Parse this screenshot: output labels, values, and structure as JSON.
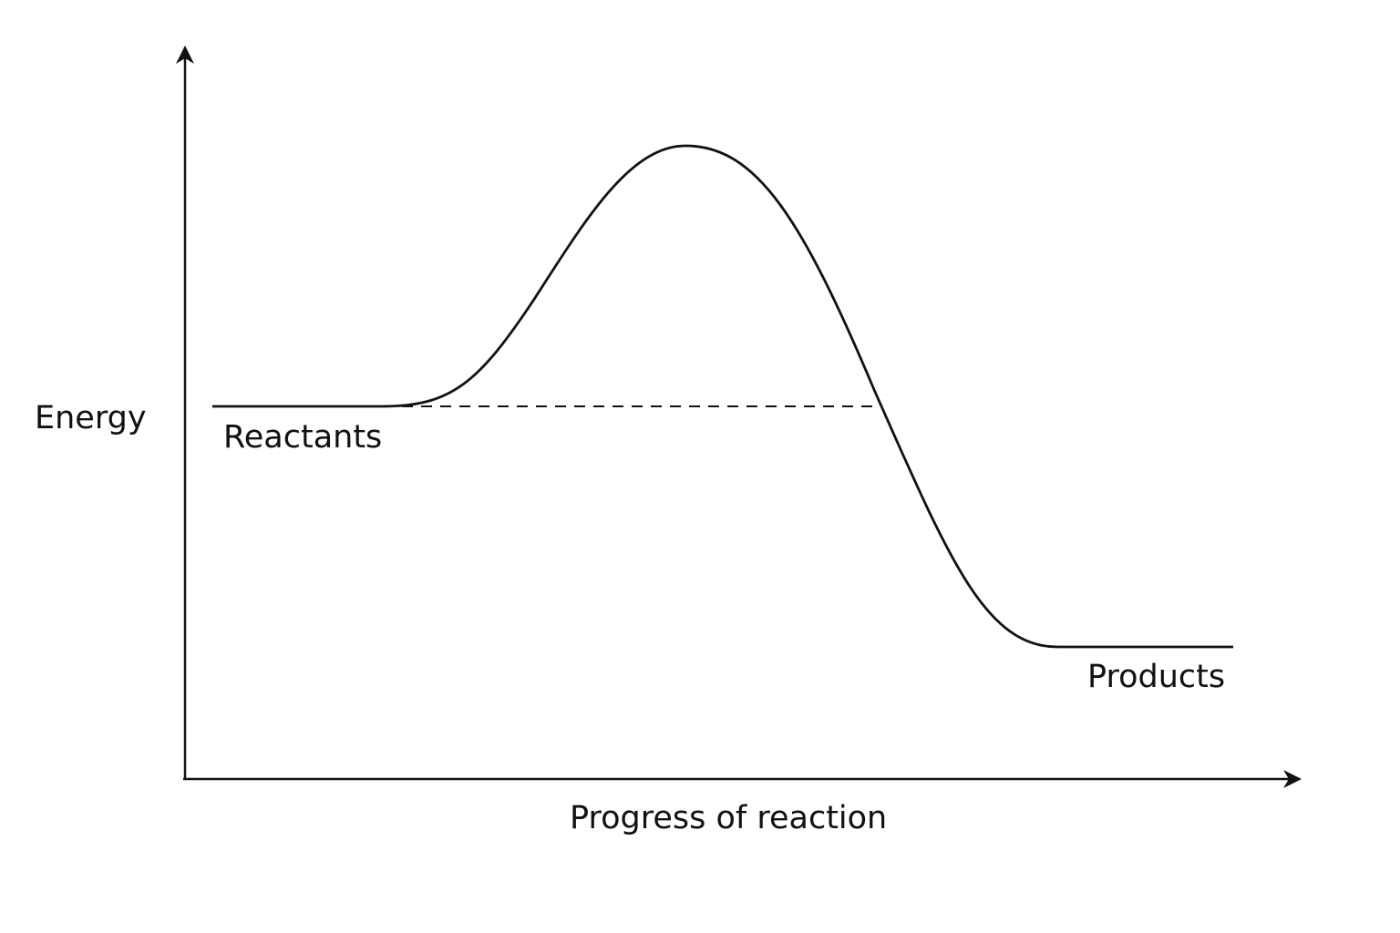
{
  "diagram": {
    "y_axis_label": "Energy",
    "x_axis_label": "Progress of reaction",
    "reactants_label": "Reactants",
    "products_label": "Products"
  },
  "colors": {
    "line": "#111111",
    "background": "#ffffff"
  }
}
